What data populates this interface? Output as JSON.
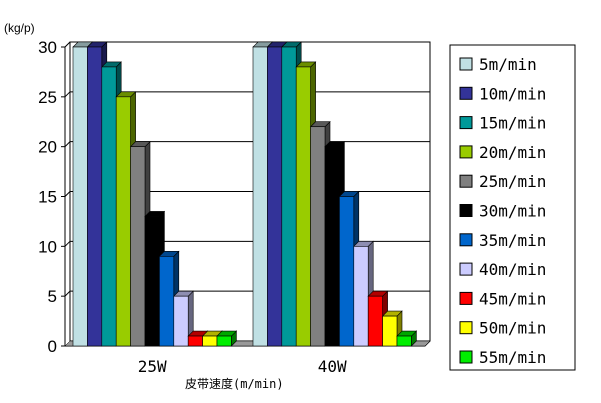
{
  "chart_data": {
    "type": "bar",
    "ylabel": "(kg/p)",
    "xlabel": "皮带速度(m/min)",
    "categories": [
      "25W",
      "40W"
    ],
    "ylim": [
      0,
      30
    ],
    "yticks": [
      0,
      5,
      10,
      15,
      20,
      25,
      30
    ],
    "grid": true,
    "legend_position": "right",
    "series": [
      {
        "name": "5m/min",
        "color": "#c0e0e4",
        "values": [
          30,
          30
        ]
      },
      {
        "name": "10m/min",
        "color": "#333399",
        "values": [
          30,
          30
        ]
      },
      {
        "name": "15m/min",
        "color": "#009999",
        "values": [
          28,
          30
        ]
      },
      {
        "name": "20m/min",
        "color": "#99cc00",
        "values": [
          25,
          28
        ]
      },
      {
        "name": "25m/min",
        "color": "#808080",
        "values": [
          20,
          22
        ]
      },
      {
        "name": "30m/min",
        "color": "#000000",
        "values": [
          13,
          20
        ]
      },
      {
        "name": "35m/min",
        "color": "#0066cc",
        "values": [
          9,
          15
        ]
      },
      {
        "name": "40m/min",
        "color": "#ccccff",
        "values": [
          5,
          10
        ]
      },
      {
        "name": "45m/min",
        "color": "#ff0000",
        "values": [
          1,
          5
        ]
      },
      {
        "name": "50m/min",
        "color": "#ffff00",
        "values": [
          1,
          3
        ]
      },
      {
        "name": "55m/min",
        "color": "#00ee00",
        "values": [
          1,
          1
        ]
      }
    ]
  }
}
